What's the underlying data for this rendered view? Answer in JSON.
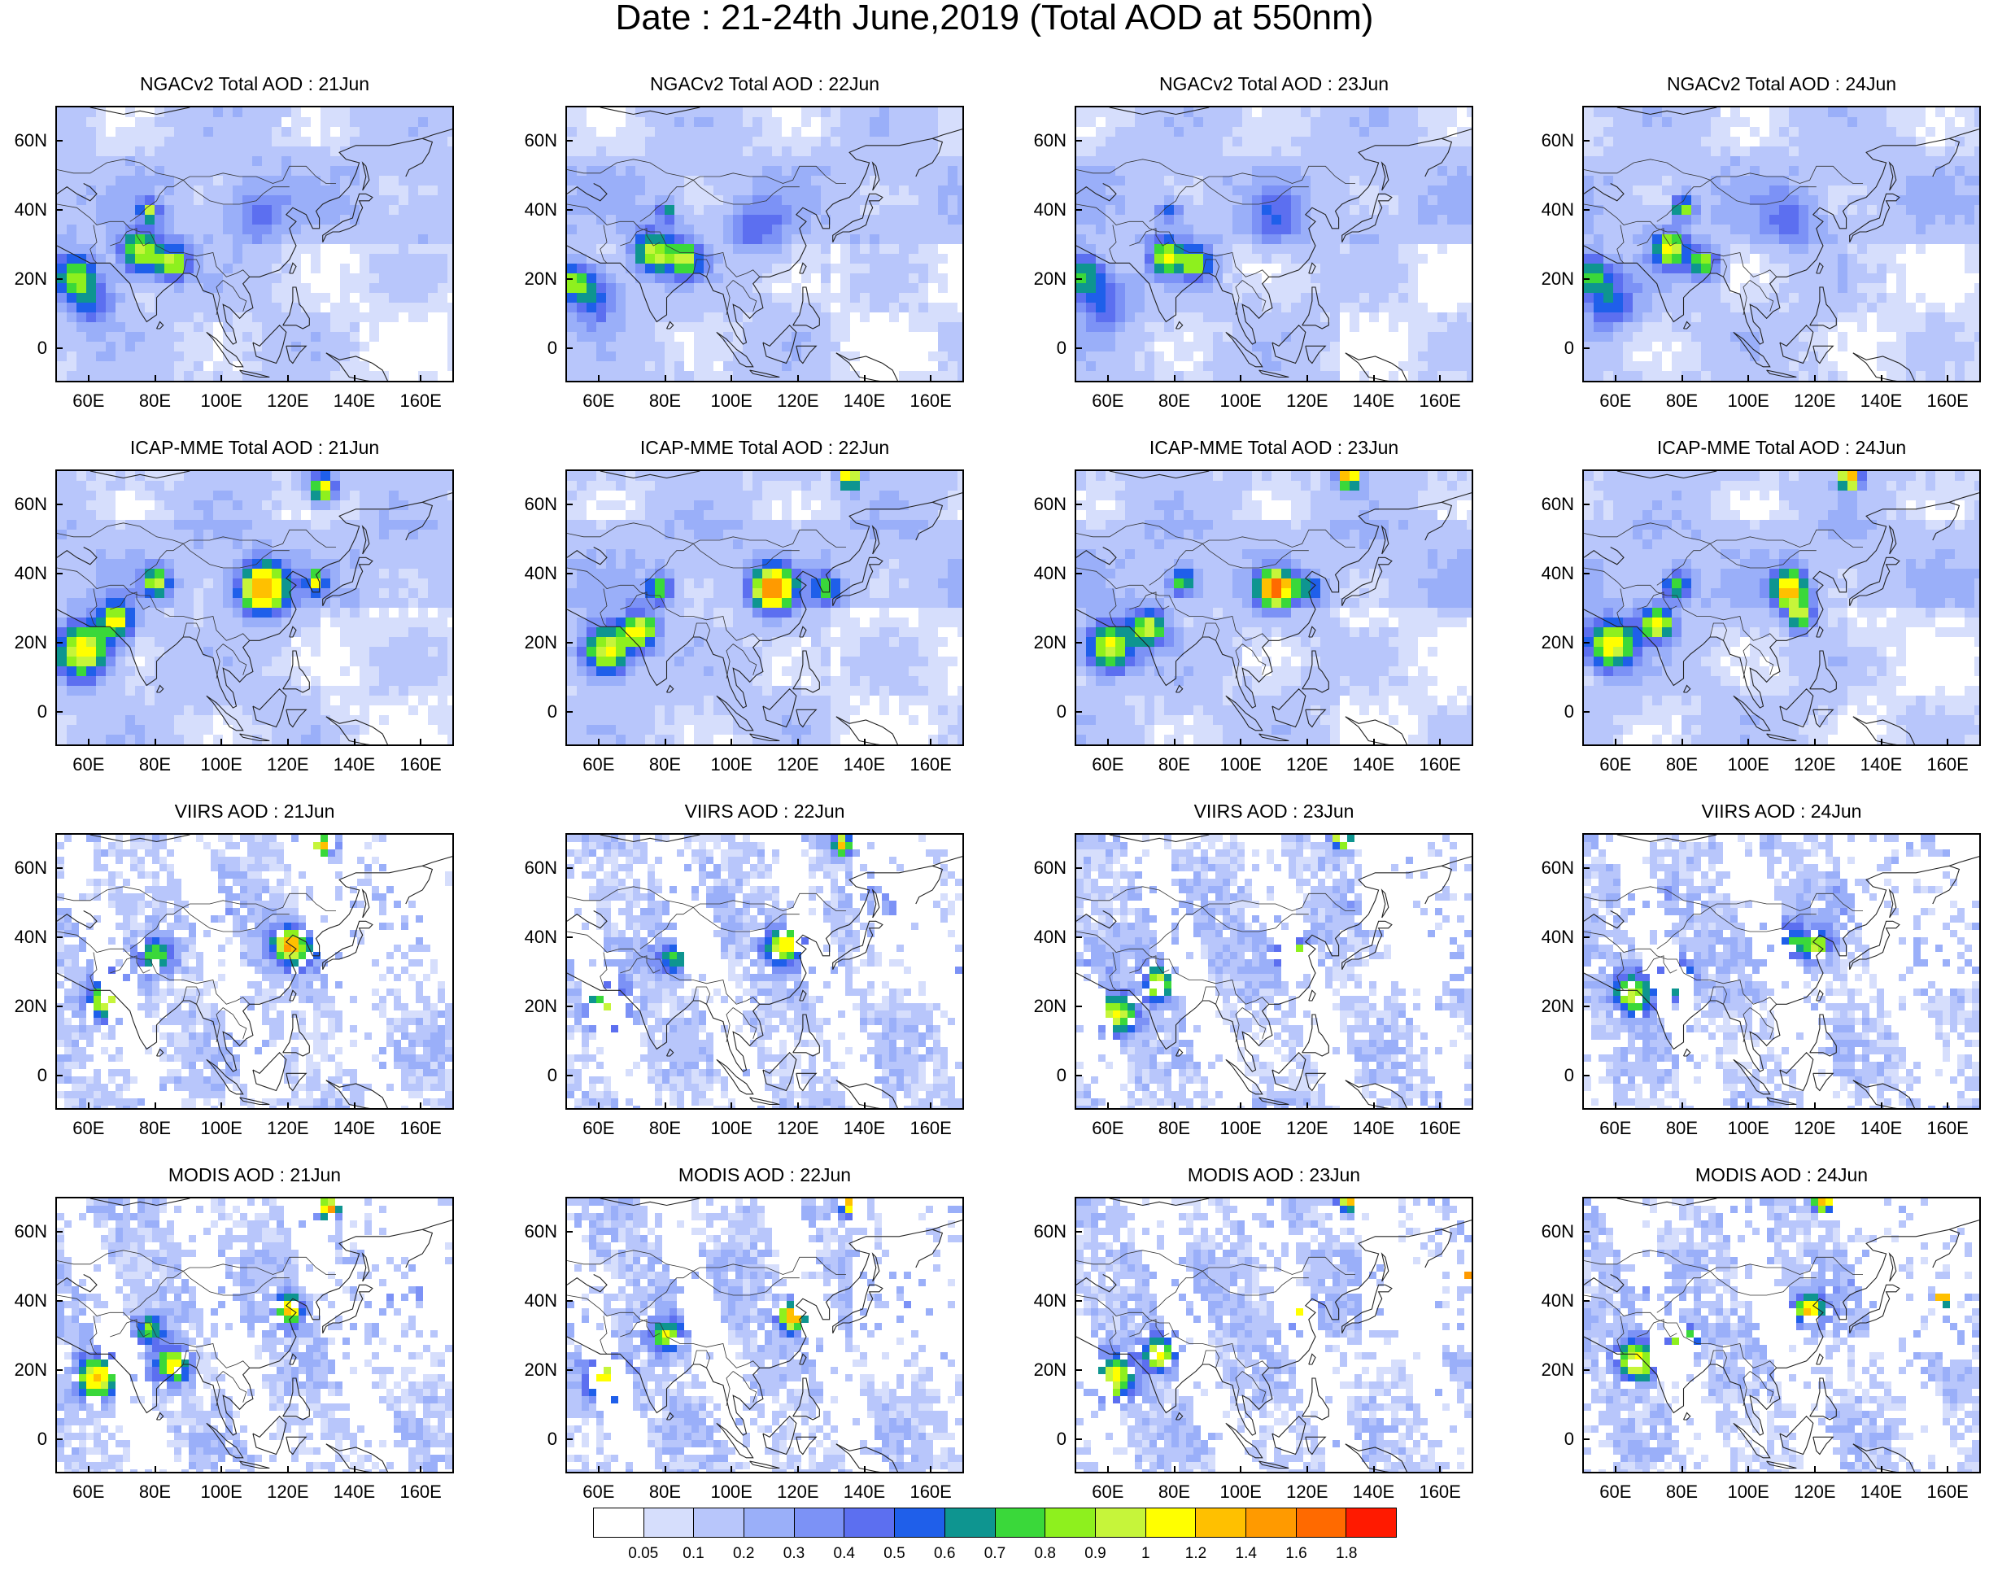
{
  "title": "Date : 21-24th June,2019 (Total AOD at 550nm)",
  "rows": [
    {
      "product": "NGACv2",
      "titles": [
        "NGACv2 Total AOD : 21Jun",
        "NGACv2 Total AOD : 22Jun",
        "NGACv2 Total AOD : 23Jun",
        "NGACv2 Total AOD : 24Jun"
      ]
    },
    {
      "product": "ICAP-MME",
      "titles": [
        "ICAP-MME Total AOD : 21Jun",
        "ICAP-MME Total AOD : 22Jun",
        "ICAP-MME Total AOD : 23Jun",
        "ICAP-MME Total AOD : 24Jun"
      ]
    },
    {
      "product": "VIIRS",
      "titles": [
        "VIIRS AOD : 21Jun",
        "VIIRS AOD : 22Jun",
        "VIIRS AOD : 23Jun",
        "VIIRS AOD : 24Jun"
      ]
    },
    {
      "product": "MODIS",
      "titles": [
        "MODIS AOD : 21Jun",
        "MODIS AOD : 22Jun",
        "MODIS AOD : 23Jun",
        "MODIS AOD : 24Jun"
      ]
    }
  ],
  "map": {
    "lon_range": [
      50,
      170
    ],
    "lat_range": [
      -10,
      70
    ],
    "lat_ticks": [
      "60N",
      "40N",
      "20N",
      "0"
    ],
    "lon_ticks": [
      "60E",
      "80E",
      "100E",
      "120E",
      "140E",
      "160E"
    ],
    "lat_tick_values": [
      60,
      40,
      20,
      0
    ],
    "lon_tick_values": [
      60,
      80,
      100,
      120,
      140,
      160
    ]
  },
  "colorbar": {
    "labels": [
      "0.05",
      "0.1",
      "0.2",
      "0.3",
      "0.4",
      "0.5",
      "0.6",
      "0.7",
      "0.8",
      "0.9",
      "1",
      "1.2",
      "1.4",
      "1.6",
      "1.8"
    ],
    "colors": [
      "#ffffff",
      "#d6defc",
      "#b8c6fb",
      "#9aaff9",
      "#7c92f6",
      "#5c6ff0",
      "#1f5fea",
      "#0e9590",
      "#3ad83a",
      "#8ef01e",
      "#c6f53a",
      "#ffff00",
      "#ffc000",
      "#ff9a00",
      "#ff6a00",
      "#ff1a00"
    ]
  }
}
